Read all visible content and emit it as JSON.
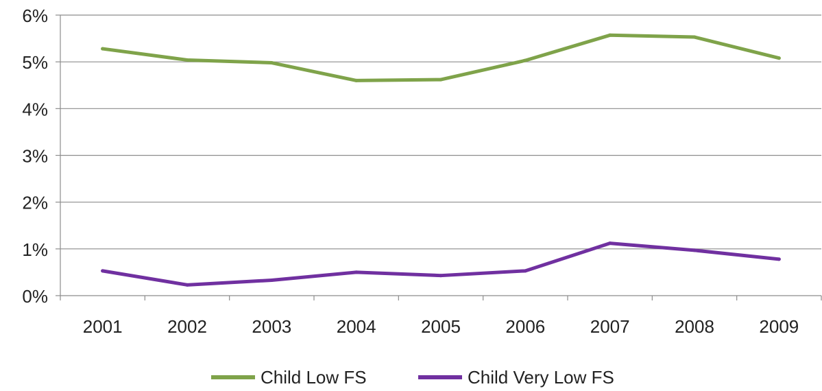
{
  "chart_data": {
    "type": "line",
    "title": "",
    "xlabel": "",
    "ylabel": "",
    "categories": [
      "2001",
      "2002",
      "2003",
      "2004",
      "2005",
      "2006",
      "2007",
      "2008",
      "2009"
    ],
    "ylim": [
      0,
      6
    ],
    "yticks": [
      0,
      1,
      2,
      3,
      4,
      5,
      6
    ],
    "ytick_labels": [
      "0%",
      "1%",
      "2%",
      "3%",
      "4%",
      "5%",
      "6%"
    ],
    "grid": true,
    "legend_position": "bottom",
    "series": [
      {
        "name": "Child Low FS",
        "color": "#7fa34a",
        "values": [
          5.28,
          5.04,
          4.98,
          4.6,
          4.62,
          5.03,
          5.57,
          5.53,
          5.08
        ]
      },
      {
        "name": "Child Very Low FS",
        "color": "#7030a0",
        "values": [
          0.53,
          0.23,
          0.33,
          0.5,
          0.43,
          0.53,
          1.12,
          0.97,
          0.78
        ]
      }
    ]
  }
}
